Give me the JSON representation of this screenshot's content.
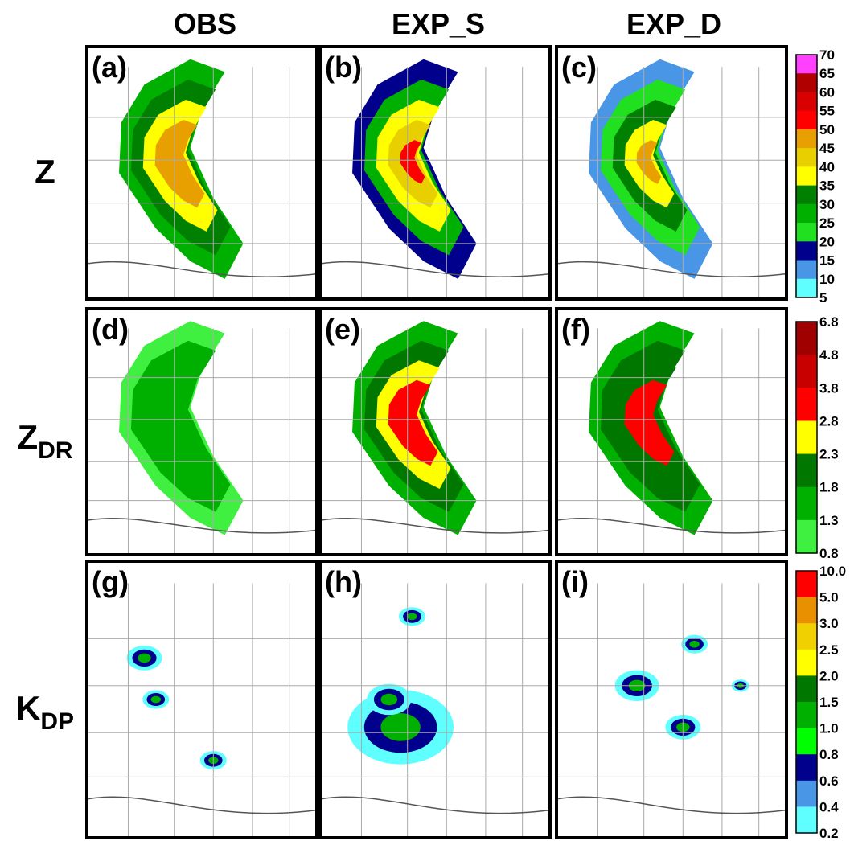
{
  "columns": [
    "OBS",
    "EXP_S",
    "EXP_D"
  ],
  "rows": [
    {
      "main": "Z"
    },
    {
      "main": "Z",
      "sub": "DR"
    },
    {
      "main": "K",
      "sub": "DP"
    }
  ],
  "panels": [
    "(a)",
    "(b)",
    "(c)",
    "(d)",
    "(e)",
    "(f)",
    "(g)",
    "(h)",
    "(i)"
  ],
  "colorbars": [
    {
      "labels": [
        "70",
        "65",
        "60",
        "55",
        "50",
        "45",
        "40",
        "35",
        "30",
        "25",
        "20",
        "15",
        "10",
        "5"
      ],
      "colors": [
        "#ff40ff",
        "#b00000",
        "#d80000",
        "#ff0000",
        "#e8a000",
        "#e8d000",
        "#ffff00",
        "#008000",
        "#00b000",
        "#20e020",
        "#00008c",
        "#4a96e6",
        "#60ffff"
      ]
    },
    {
      "labels": [
        "6.8",
        "4.8",
        "3.8",
        "2.8",
        "2.3",
        "1.8",
        "1.3",
        "0.8"
      ],
      "colors": [
        "#a00000",
        "#c80000",
        "#ff0000",
        "#ffff00",
        "#007800",
        "#00b000",
        "#40f040"
      ]
    },
    {
      "labels": [
        "10.0",
        "5.0",
        "3.0",
        "2.5",
        "2.0",
        "1.5",
        "1.0",
        "0.8",
        "0.6",
        "0.4",
        "0.2"
      ],
      "colors": [
        "#ff0000",
        "#e89000",
        "#f0d000",
        "#ffff00",
        "#007800",
        "#00b000",
        "#00ff00",
        "#00008c",
        "#4a96e6",
        "#60ffff"
      ]
    }
  ]
}
